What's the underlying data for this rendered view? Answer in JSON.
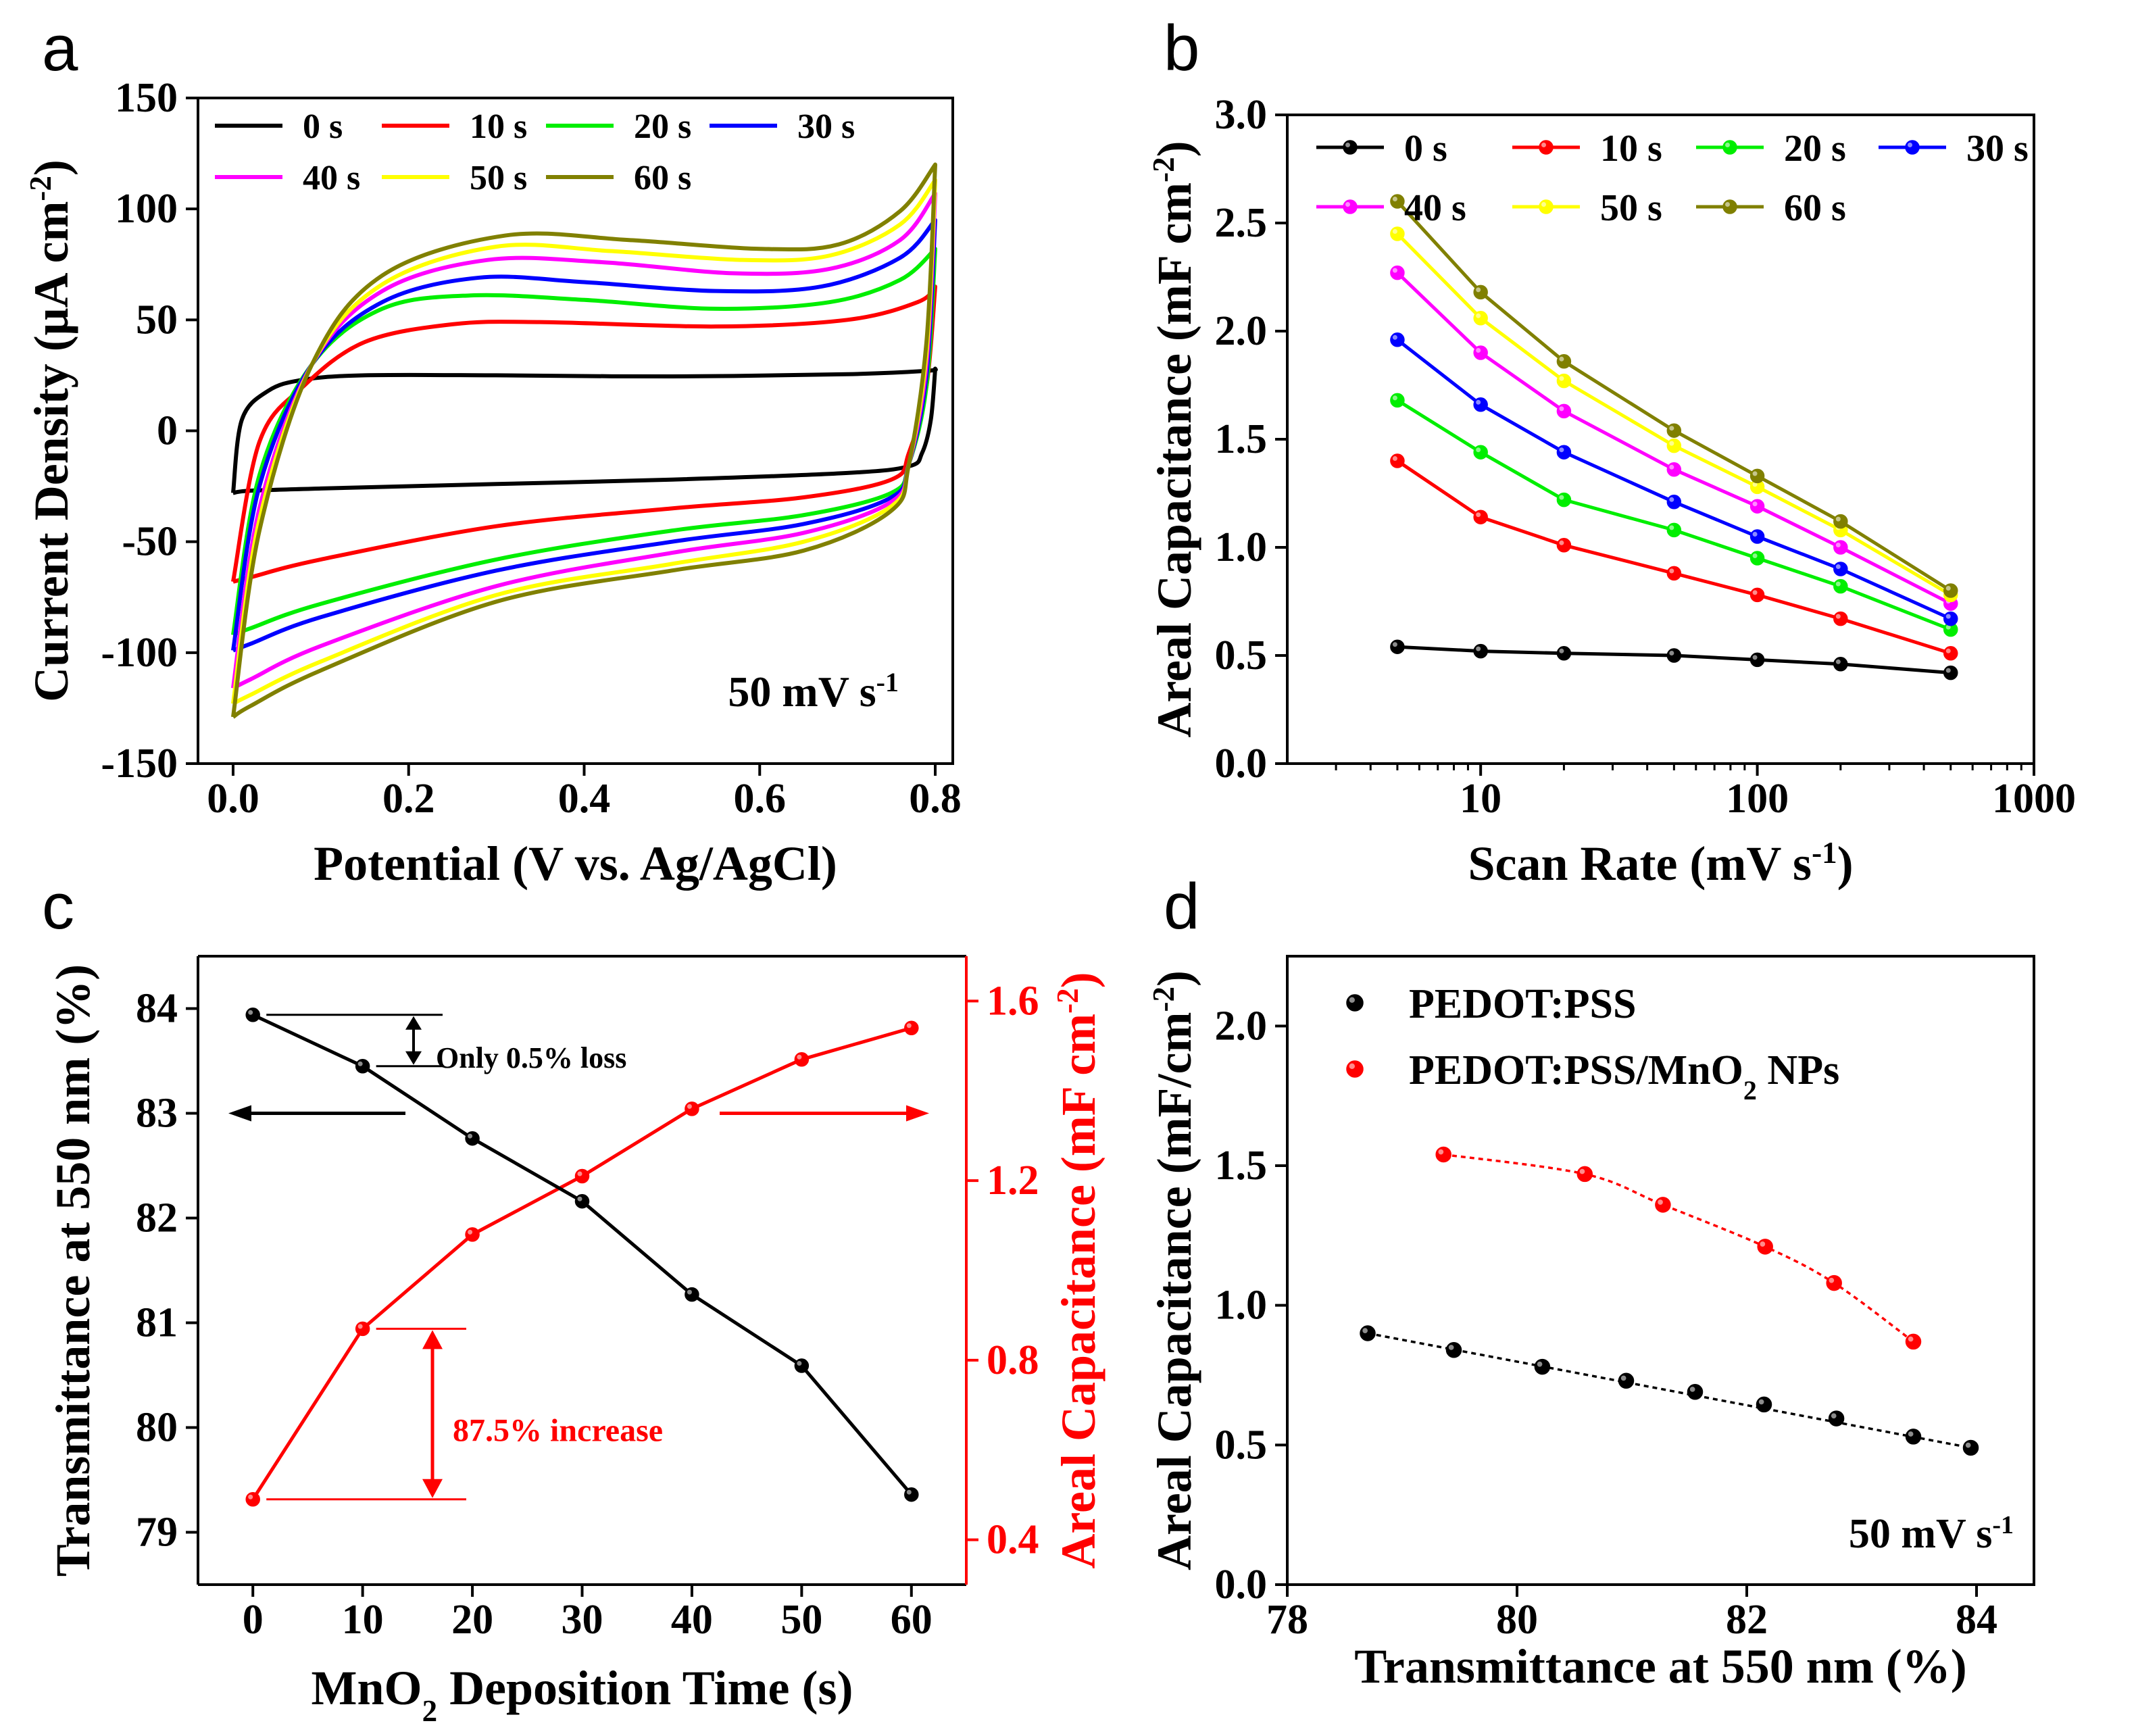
{
  "panels": {
    "a": "a",
    "b": "b",
    "c": "c",
    "d": "d"
  },
  "chart_data": [
    {
      "type": "line",
      "id": "a",
      "xlabel": "Potential (V vs. Ag/AgCl)",
      "ylabel": "Current Density (μA cm⁻²)",
      "xlim": [
        -0.04,
        0.82
      ],
      "ylim": [
        -150,
        150
      ],
      "xticks": [
        0.0,
        0.2,
        0.4,
        0.6,
        0.8
      ],
      "xtick_labels": [
        "0.0",
        "0.2",
        "0.4",
        "0.6",
        "0.8"
      ],
      "yticks": [
        -150,
        -100,
        -50,
        0,
        50,
        100,
        150
      ],
      "ytick_labels": [
        "-150",
        "-100",
        "-50",
        "0",
        "50",
        "100",
        "150"
      ],
      "annotation": "50 mV s⁻¹",
      "legend_position": "top",
      "series": [
        {
          "name": "0 s",
          "color": "#000000",
          "upper": [
            [
              0.0,
              -28
            ],
            [
              0.01,
              5
            ],
            [
              0.04,
              18
            ],
            [
              0.08,
              23
            ],
            [
              0.15,
              25
            ],
            [
              0.3,
              25
            ],
            [
              0.5,
              24.5
            ],
            [
              0.7,
              25.5
            ],
            [
              0.79,
              27
            ],
            [
              0.8,
              28
            ]
          ],
          "lower": [
            [
              0.8,
              28
            ],
            [
              0.795,
              5
            ],
            [
              0.785,
              -10
            ],
            [
              0.77,
              -16
            ],
            [
              0.7,
              -19
            ],
            [
              0.5,
              -22
            ],
            [
              0.3,
              -24
            ],
            [
              0.1,
              -26
            ],
            [
              0.02,
              -27
            ],
            [
              0.0,
              -28
            ]
          ]
        },
        {
          "name": "10 s",
          "color": "#ff0000",
          "upper": [
            [
              0.0,
              -68
            ],
            [
              0.03,
              -5
            ],
            [
              0.08,
              20
            ],
            [
              0.15,
              40
            ],
            [
              0.25,
              48
            ],
            [
              0.35,
              49
            ],
            [
              0.55,
              47
            ],
            [
              0.7,
              50
            ],
            [
              0.78,
              58
            ],
            [
              0.8,
              65
            ]
          ],
          "lower": [
            [
              0.8,
              65
            ],
            [
              0.79,
              20
            ],
            [
              0.77,
              -10
            ],
            [
              0.75,
              -22
            ],
            [
              0.65,
              -30
            ],
            [
              0.5,
              -35
            ],
            [
              0.3,
              -43
            ],
            [
              0.1,
              -58
            ],
            [
              0.02,
              -66
            ],
            [
              0.0,
              -68
            ]
          ]
        },
        {
          "name": "20 s",
          "color": "#00ee00",
          "upper": [
            [
              0.0,
              -92
            ],
            [
              0.03,
              -20
            ],
            [
              0.09,
              30
            ],
            [
              0.17,
              55
            ],
            [
              0.27,
              61
            ],
            [
              0.4,
              59
            ],
            [
              0.55,
              55
            ],
            [
              0.68,
              58
            ],
            [
              0.76,
              68
            ],
            [
              0.8,
              82
            ]
          ],
          "lower": [
            [
              0.8,
              82
            ],
            [
              0.79,
              20
            ],
            [
              0.77,
              -15
            ],
            [
              0.75,
              -28
            ],
            [
              0.65,
              -38
            ],
            [
              0.5,
              -45
            ],
            [
              0.3,
              -58
            ],
            [
              0.1,
              -78
            ],
            [
              0.02,
              -89
            ],
            [
              0.0,
              -92
            ]
          ]
        },
        {
          "name": "30 s",
          "color": "#0000ff",
          "upper": [
            [
              0.0,
              -99
            ],
            [
              0.03,
              -25
            ],
            [
              0.09,
              30
            ],
            [
              0.17,
              58
            ],
            [
              0.28,
              69
            ],
            [
              0.4,
              67
            ],
            [
              0.55,
              63
            ],
            [
              0.67,
              65
            ],
            [
              0.76,
              78
            ],
            [
              0.8,
              95
            ]
          ],
          "lower": [
            [
              0.8,
              95
            ],
            [
              0.79,
              25
            ],
            [
              0.77,
              -15
            ],
            [
              0.75,
              -30
            ],
            [
              0.65,
              -42
            ],
            [
              0.5,
              -50
            ],
            [
              0.3,
              -63
            ],
            [
              0.1,
              -84
            ],
            [
              0.02,
              -96
            ],
            [
              0.0,
              -99
            ]
          ]
        },
        {
          "name": "40 s",
          "color": "#ff00ff",
          "upper": [
            [
              0.0,
              -116
            ],
            [
              0.03,
              -35
            ],
            [
              0.09,
              30
            ],
            [
              0.17,
              63
            ],
            [
              0.29,
              77
            ],
            [
              0.42,
              76
            ],
            [
              0.57,
              71
            ],
            [
              0.68,
              73
            ],
            [
              0.76,
              86
            ],
            [
              0.8,
              107
            ]
          ],
          "lower": [
            [
              0.8,
              107
            ],
            [
              0.79,
              30
            ],
            [
              0.77,
              -15
            ],
            [
              0.75,
              -32
            ],
            [
              0.65,
              -46
            ],
            [
              0.5,
              -55
            ],
            [
              0.3,
              -70
            ],
            [
              0.1,
              -97
            ],
            [
              0.02,
              -112
            ],
            [
              0.0,
              -116
            ]
          ]
        },
        {
          "name": "50 s",
          "color": "#ffff00",
          "upper": [
            [
              0.0,
              -123
            ],
            [
              0.03,
              -40
            ],
            [
              0.09,
              30
            ],
            [
              0.17,
              66
            ],
            [
              0.3,
              83
            ],
            [
              0.43,
              81
            ],
            [
              0.58,
              77
            ],
            [
              0.68,
              79
            ],
            [
              0.76,
              93
            ],
            [
              0.8,
              113
            ]
          ],
          "lower": [
            [
              0.8,
              113
            ],
            [
              0.79,
              35
            ],
            [
              0.77,
              -15
            ],
            [
              0.75,
              -34
            ],
            [
              0.65,
              -50
            ],
            [
              0.5,
              -60
            ],
            [
              0.3,
              -74
            ],
            [
              0.1,
              -104
            ],
            [
              0.02,
              -119
            ],
            [
              0.0,
              -123
            ]
          ]
        },
        {
          "name": "60 s",
          "color": "#808000",
          "upper": [
            [
              0.0,
              -129
            ],
            [
              0.03,
              -45
            ],
            [
              0.09,
              30
            ],
            [
              0.17,
              70
            ],
            [
              0.31,
              88
            ],
            [
              0.45,
              86
            ],
            [
              0.6,
              82
            ],
            [
              0.69,
              84
            ],
            [
              0.76,
              99
            ],
            [
              0.8,
              120
            ]
          ],
          "lower": [
            [
              0.8,
              120
            ],
            [
              0.79,
              40
            ],
            [
              0.77,
              -15
            ],
            [
              0.75,
              -36
            ],
            [
              0.65,
              -54
            ],
            [
              0.5,
              -63
            ],
            [
              0.3,
              -77
            ],
            [
              0.1,
              -108
            ],
            [
              0.02,
              -124
            ],
            [
              0.0,
              -129
            ]
          ]
        }
      ]
    },
    {
      "type": "line",
      "id": "b",
      "xscale": "log",
      "xlabel": "Scan Rate (mV s⁻¹)",
      "ylabel": "Areal Capacitance (mF cm⁻²)",
      "xlim": [
        2,
        1000
      ],
      "ylim": [
        0.0,
        3.0
      ],
      "xticks": [
        10,
        100,
        1000
      ],
      "xtick_labels": [
        "10",
        "100",
        "1000"
      ],
      "yticks": [
        0.0,
        0.5,
        1.0,
        1.5,
        2.0,
        2.5,
        3.0
      ],
      "ytick_labels": [
        "0.0",
        "0.5",
        "1.0",
        "1.5",
        "2.0",
        "2.5",
        "3.0"
      ],
      "x": [
        5,
        10,
        20,
        50,
        100,
        200,
        500
      ],
      "legend_position": "top",
      "series": [
        {
          "name": "0 s",
          "color": "#000000",
          "values": [
            0.54,
            0.52,
            0.51,
            0.5,
            0.48,
            0.46,
            0.42
          ]
        },
        {
          "name": "10 s",
          "color": "#ff0000",
          "values": [
            1.4,
            1.14,
            1.01,
            0.88,
            0.78,
            0.67,
            0.51
          ]
        },
        {
          "name": "20 s",
          "color": "#00ee00",
          "values": [
            1.68,
            1.44,
            1.22,
            1.08,
            0.95,
            0.82,
            0.62
          ]
        },
        {
          "name": "30 s",
          "color": "#0000ff",
          "values": [
            1.96,
            1.66,
            1.44,
            1.21,
            1.05,
            0.9,
            0.67
          ]
        },
        {
          "name": "40 s",
          "color": "#ff00ff",
          "values": [
            2.27,
            1.9,
            1.63,
            1.36,
            1.19,
            1.0,
            0.74
          ]
        },
        {
          "name": "50 s",
          "color": "#ffff00",
          "values": [
            2.45,
            2.06,
            1.77,
            1.47,
            1.28,
            1.08,
            0.78
          ]
        },
        {
          "name": "60 s",
          "color": "#808000",
          "values": [
            2.6,
            2.18,
            1.86,
            1.54,
            1.33,
            1.12,
            0.8
          ]
        }
      ]
    },
    {
      "type": "line",
      "id": "c",
      "xlabel": "MnO₂ Deposition Time (s)",
      "ylabel_left": "Transmittance at 550 nm (%)",
      "ylabel_right": "Areal Capacitance (mF cm⁻²)",
      "xlim": [
        -5,
        65
      ],
      "ylim_left": [
        78.5,
        84.5
      ],
      "ylim_right": [
        0.3,
        1.7
      ],
      "xticks": [
        0,
        10,
        20,
        30,
        40,
        50,
        60
      ],
      "xtick_labels": [
        "0",
        "10",
        "20",
        "30",
        "40",
        "50",
        "60"
      ],
      "yticks_left": [
        79,
        80,
        81,
        82,
        83,
        84
      ],
      "ytick_labels_left": [
        "79",
        "80",
        "81",
        "82",
        "83",
        "84"
      ],
      "yticks_right": [
        0.4,
        0.8,
        1.2,
        1.6
      ],
      "ytick_labels_right": [
        "0.4",
        "0.8",
        "1.2",
        "1.6"
      ],
      "x": [
        0,
        10,
        20,
        30,
        40,
        50,
        60
      ],
      "series": [
        {
          "name": "Transmittance",
          "axis": "left",
          "color": "#000000",
          "values": [
            83.94,
            83.45,
            82.76,
            82.16,
            81.27,
            80.59,
            79.36
          ]
        },
        {
          "name": "Areal Capacitance",
          "axis": "right",
          "color": "#ff0000",
          "values": [
            0.49,
            0.87,
            1.08,
            1.21,
            1.36,
            1.47,
            1.54
          ]
        }
      ],
      "annotations": {
        "loss": "Only 0.5% loss",
        "increase": "87.5% increase"
      }
    },
    {
      "type": "scatter",
      "id": "d",
      "xlabel": "Transmittance at 550 nm (%)",
      "ylabel": "Areal Capacitance (mF/cm⁻²)",
      "xlim": [
        78,
        84.5
      ],
      "ylim": [
        0.0,
        2.25
      ],
      "xticks": [
        78,
        80,
        82,
        84
      ],
      "xtick_labels": [
        "78",
        "80",
        "82",
        "84"
      ],
      "yticks": [
        0.0,
        0.5,
        1.0,
        1.5,
        2.0
      ],
      "ytick_labels": [
        "0.0",
        "0.5",
        "1.0",
        "1.5",
        "2.0"
      ],
      "annotation": "50 mV s⁻¹",
      "legend_position": "top-left",
      "series": [
        {
          "name": "PEDOT:PSS",
          "legend_main": "PEDOT:PSS",
          "legend_sub": "",
          "legend_tail": "",
          "color": "#000000",
          "x": [
            78.7,
            79.45,
            80.22,
            80.95,
            81.55,
            82.15,
            82.78,
            83.45,
            83.95
          ],
          "y": [
            0.9,
            0.84,
            0.78,
            0.73,
            0.69,
            0.645,
            0.595,
            0.53,
            0.49
          ]
        },
        {
          "name": "PEDOT:PSS/MnO2 NPs",
          "legend_main": "PEDOT:PSS/MnO",
          "legend_sub": "2",
          "legend_tail": " NPs",
          "color": "#ff0000",
          "x": [
            79.36,
            80.59,
            81.27,
            82.16,
            82.76,
            83.45
          ],
          "y": [
            1.54,
            1.47,
            1.36,
            1.21,
            1.08,
            0.87
          ]
        }
      ]
    }
  ]
}
